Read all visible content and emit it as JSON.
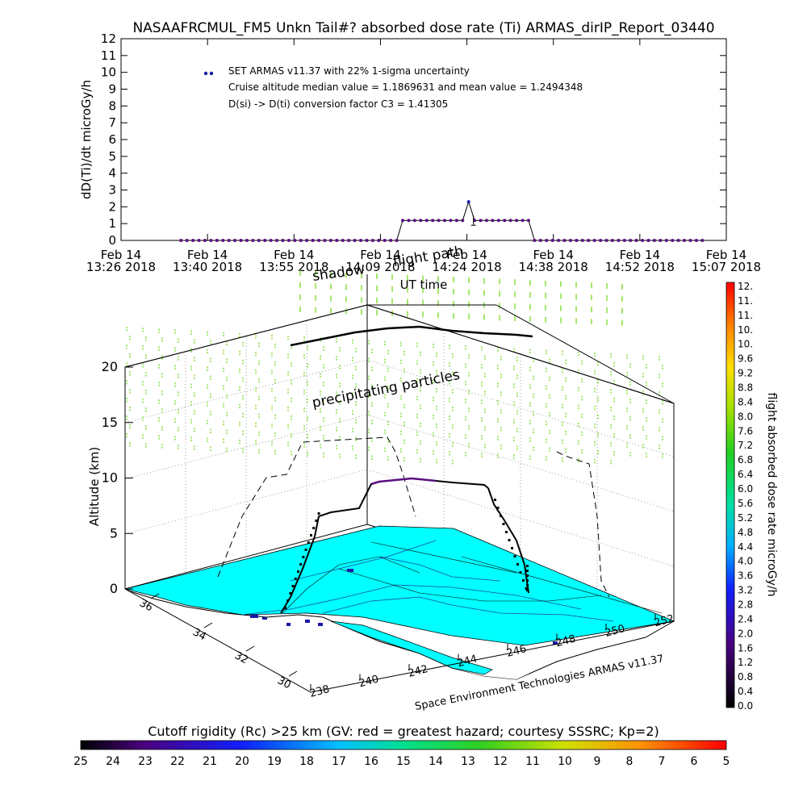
{
  "title": "NASAAFRCMUL_FM5 Unkn Tail#? absorbed dose rate (Ti) ARMAS_dirIP_Report_03440",
  "chart_data": [
    {
      "type": "line",
      "ylabel": "dD(Ti)/dt microGy/h",
      "xlabel": "UT time",
      "ylim": [
        0,
        12
      ],
      "yticks": [
        "0",
        "1",
        "2",
        "3",
        "4",
        "5",
        "6",
        "7",
        "8",
        "9",
        "10",
        "11",
        "12"
      ],
      "xticks": [
        {
          "day": "Feb 14",
          "time": "13:26 2018"
        },
        {
          "day": "Feb 14",
          "time": "13:40 2018"
        },
        {
          "day": "Feb 14",
          "time": "13:55 2018"
        },
        {
          "day": "Feb 14",
          "time": "14:09 2018"
        },
        {
          "day": "Feb 14",
          "time": "14:24 2018"
        },
        {
          "day": "Feb 14",
          "time": "14:38 2018"
        },
        {
          "day": "Feb 14",
          "time": "14:52 2018"
        },
        {
          "day": "Feb 14",
          "time": "15:07 2018"
        }
      ],
      "legend": [
        "SET ARMAS v11.37 with 22% 1-sigma uncertainty",
        "Cruise altitude median value = 1.1869631 and mean value = 1.2494348",
        "D(si) -> D(ti) conversion factor C3 = 1.41305"
      ],
      "legend_color": "#1a1aa8",
      "series_color": "#5a1080",
      "series": [
        {
          "points": [
            [
              "13:36",
              0
            ],
            [
              "13:37",
              0
            ],
            [
              "13:38",
              0
            ],
            [
              "13:39",
              0
            ],
            [
              "13:40",
              0
            ],
            [
              "13:41",
              0
            ],
            [
              "13:42",
              0
            ],
            [
              "13:43",
              0
            ],
            [
              "13:44",
              0
            ],
            [
              "13:45",
              0
            ],
            [
              "13:46",
              0
            ],
            [
              "13:47",
              0
            ],
            [
              "13:48",
              0
            ],
            [
              "13:49",
              0
            ],
            [
              "13:50",
              0
            ],
            [
              "13:51",
              0
            ],
            [
              "13:52",
              0
            ],
            [
              "13:53",
              0
            ],
            [
              "13:54",
              0
            ],
            [
              "13:55",
              0
            ],
            [
              "13:56",
              0
            ],
            [
              "13:57",
              0
            ],
            [
              "13:58",
              0
            ],
            [
              "13:59",
              0
            ],
            [
              "14:00",
              0
            ],
            [
              "14:01",
              0
            ],
            [
              "14:02",
              0
            ],
            [
              "14:03",
              0
            ],
            [
              "14:04",
              0
            ],
            [
              "14:05",
              0
            ],
            [
              "14:06",
              0
            ],
            [
              "14:07",
              0
            ],
            [
              "14:08",
              0
            ],
            [
              "14:09",
              0
            ],
            [
              "14:10",
              0
            ],
            [
              "14:11",
              0
            ],
            [
              "14:12",
              0
            ],
            [
              "14:13",
              1.19
            ],
            [
              "14:14",
              1.19
            ],
            [
              "14:15",
              1.19
            ],
            [
              "14:16",
              1.19
            ],
            [
              "14:17",
              1.19
            ],
            [
              "14:18",
              1.19
            ],
            [
              "14:19",
              1.19
            ],
            [
              "14:20",
              1.19
            ],
            [
              "14:21",
              1.19
            ],
            [
              "14:22",
              1.19
            ],
            [
              "14:23",
              1.19
            ],
            [
              "14:24",
              2.3
            ],
            [
              "14:25",
              1.19
            ],
            [
              "14:26",
              1.19
            ],
            [
              "14:27",
              1.19
            ],
            [
              "14:28",
              1.19
            ],
            [
              "14:29",
              1.19
            ],
            [
              "14:30",
              1.19
            ],
            [
              "14:31",
              1.19
            ],
            [
              "14:32",
              1.19
            ],
            [
              "14:33",
              1.19
            ],
            [
              "14:34",
              1.19
            ],
            [
              "14:35",
              0
            ],
            [
              "14:36",
              0
            ],
            [
              "14:37",
              0
            ],
            [
              "14:38",
              0
            ],
            [
              "14:39",
              0
            ],
            [
              "14:40",
              0
            ],
            [
              "14:41",
              0
            ],
            [
              "14:42",
              0
            ],
            [
              "14:43",
              0
            ],
            [
              "14:44",
              0
            ],
            [
              "14:45",
              0
            ],
            [
              "14:46",
              0
            ],
            [
              "14:47",
              0
            ],
            [
              "14:48",
              0
            ],
            [
              "14:49",
              0
            ],
            [
              "14:50",
              0
            ],
            [
              "14:51",
              0
            ],
            [
              "14:52",
              0
            ],
            [
              "14:53",
              0
            ],
            [
              "14:54",
              0
            ],
            [
              "14:55",
              0
            ],
            [
              "14:56",
              0
            ],
            [
              "14:57",
              0
            ],
            [
              "14:58",
              0
            ],
            [
              "14:59",
              0
            ],
            [
              "15:00",
              0
            ],
            [
              "15:01",
              0
            ],
            [
              "15:02",
              0
            ],
            [
              "15:03",
              0
            ]
          ]
        }
      ]
    },
    {
      "type": "scatter",
      "ylabel": "Altitude (km)",
      "zticks": [
        "0",
        "5",
        "10",
        "15",
        "20"
      ],
      "lat_ticks": [
        "30",
        "32",
        "34",
        "36"
      ],
      "lon_ticks": [
        "238",
        "240",
        "242",
        "244",
        "246",
        "248",
        "250",
        "252"
      ],
      "annotations": [
        "precipitating particles",
        "shadow",
        "flight path"
      ],
      "credit": "Space Environment Technologies ARMAS v11.37",
      "map_color": "#00ffff",
      "particle_color": "#7fdc30"
    },
    {
      "type": "heatmap",
      "ylabel": "flight absorbed dose rate microGy/h",
      "colorbar_ticks": [
        "12.",
        "11.",
        "11.",
        "10.",
        "10.",
        "9.6",
        "9.2",
        "8.8",
        "8.4",
        "8.0",
        "7.6",
        "7.2",
        "6.8",
        "6.4",
        "6.0",
        "5.6",
        "5.2",
        "4.8",
        "4.4",
        "4.0",
        "3.6",
        "3.2",
        "2.8",
        "2.4",
        "2.0",
        "1.6",
        "1.2",
        "0.8",
        "0.4",
        "0.0"
      ]
    },
    {
      "type": "heatmap",
      "title": "Cutoff rigidity (Rc) >25 km (GV: red = greatest hazard; courtesy SSSRC; Kp=2)",
      "colorbar_ticks": [
        "25",
        "24",
        "23",
        "22",
        "21",
        "20",
        "19",
        "18",
        "17",
        "16",
        "15",
        "14",
        "13",
        "12",
        "11",
        "10",
        "9",
        "8",
        "7",
        "6",
        "5"
      ]
    }
  ]
}
